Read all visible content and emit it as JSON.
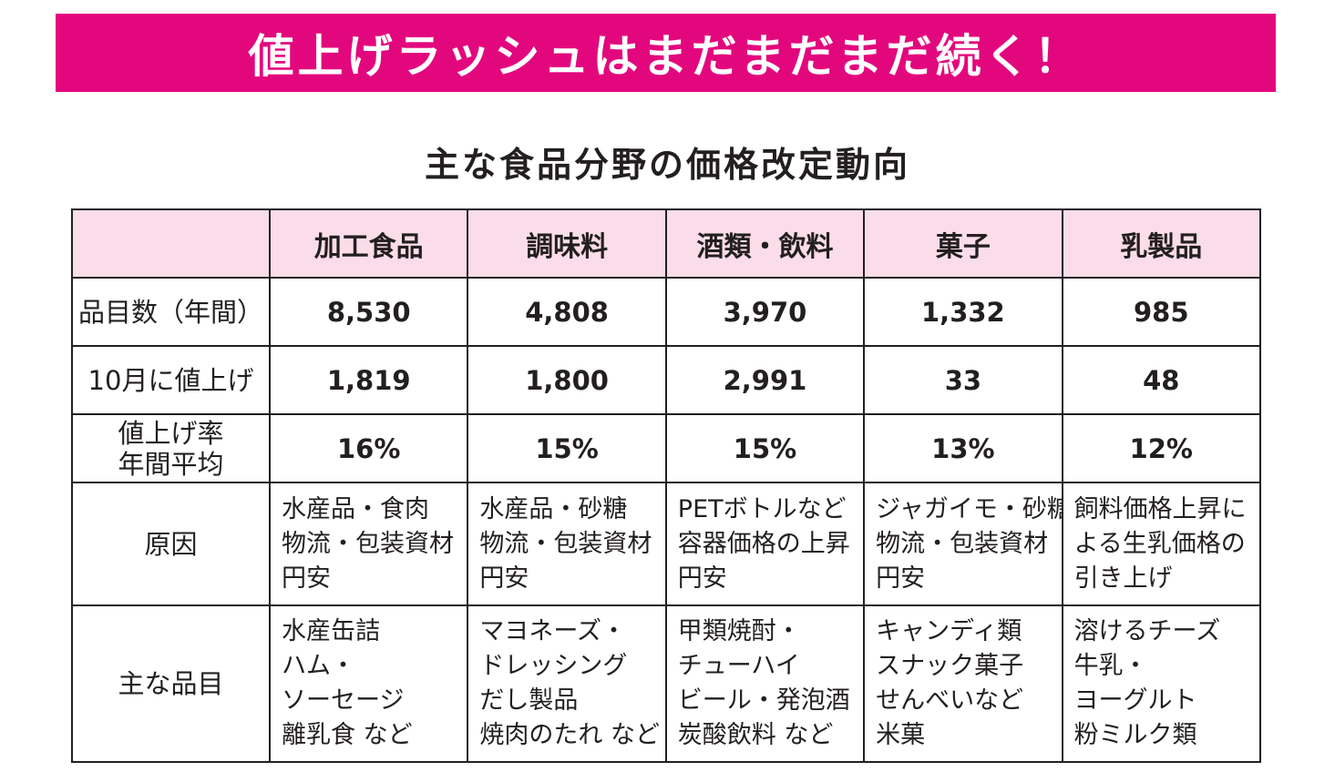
{
  "banner": {
    "title": "値上げラッシュはまだまだまだ続く！",
    "color": "#e3077e"
  },
  "subtitle": "主な食品分野の価格改定動向",
  "table": {
    "header_bg": "#fbdde9",
    "columns": [
      "",
      "加工食品",
      "調味料",
      "酒類・飲料",
      "菓子",
      "乳製品"
    ],
    "row_labels": {
      "count": "品目数（年間）",
      "october": "10月に値上げ",
      "rate_line1": "値上げ率",
      "rate_line2": "年間平均",
      "cause": "原因",
      "items": "主な品目"
    },
    "count": [
      "8,530",
      "4,808",
      "3,970",
      "1,332",
      "985"
    ],
    "october": [
      "1,819",
      "1,800",
      "2,991",
      "33",
      "48"
    ],
    "rate": [
      "16%",
      "15%",
      "15%",
      "13%",
      "12%"
    ],
    "cause": [
      [
        "水産品・食肉",
        "物流・包装資材",
        "円安"
      ],
      [
        "水産品・砂糖",
        "物流・包装資材",
        "円安"
      ],
      [
        "PETボトルなど",
        "容器価格の上昇",
        "円安"
      ],
      [
        "ジャガイモ・砂糖",
        "物流・包装資材",
        "円安"
      ],
      [
        "飼料価格上昇に",
        "よる生乳価格の",
        "引き上げ"
      ]
    ],
    "items": [
      [
        "水産缶詰",
        "ハム・",
        "ソーセージ",
        "離乳食 など"
      ],
      [
        "マヨネーズ・",
        "ドレッシング",
        "だし製品",
        "焼肉のたれ など"
      ],
      [
        "甲類焼酎・",
        "チューハイ",
        "ビール・発泡酒",
        "炭酸飲料 など"
      ],
      [
        "キャンディ類",
        "スナック菓子",
        "せんべいなど",
        "米菓"
      ],
      [
        "溶けるチーズ",
        "牛乳・",
        "ヨーグルト",
        "粉ミルク類"
      ]
    ]
  }
}
